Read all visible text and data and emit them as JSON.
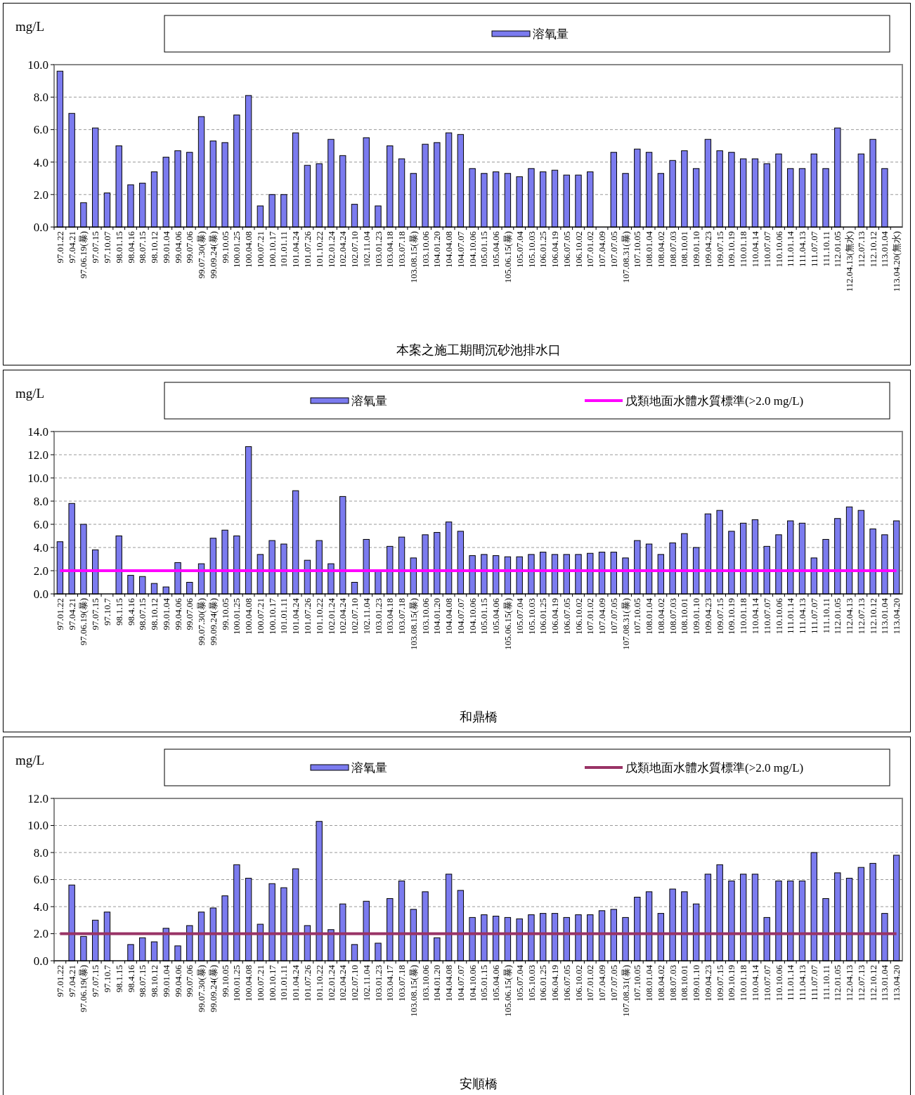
{
  "chart_data": [
    {
      "type": "bar",
      "ylabel": "mg/L",
      "xlabel": "本案之施工期間沉砂池排水口",
      "categories": [
        "97.01.22",
        "97.04.21",
        "97.06.19(暴)",
        "97.07.15",
        "97.10.07",
        "98.01.15",
        "98.04.16",
        "98.07.15",
        "98.10.12",
        "99.01.04",
        "99.04.06",
        "99.07.06",
        "99.07.30(暴)",
        "99.09.24(暴)",
        "99.10.05",
        "100.01.25",
        "100.04.08",
        "100.07.21",
        "100.10.17",
        "101.01.11",
        "101.04.24",
        "101.07.26",
        "101.10.22",
        "102.01.24",
        "102.04.24",
        "102.07.10",
        "102.11.04",
        "103.01.23",
        "103.04.18",
        "103.07.18",
        "103.08.15(暴)",
        "103.10.06",
        "104.01.20",
        "104.04.08",
        "104.07.07",
        "104.10.06",
        "105.01.15",
        "105.04.06",
        "105.06.15(暴)",
        "105.07.04",
        "105.10.03",
        "106.01.25",
        "106.04.19",
        "106.07.05",
        "106.10.02",
        "107.01.02",
        "107.04.09",
        "107.07.05",
        "107.08.31(暴)",
        "107.10.05",
        "108.01.04",
        "108.04.02",
        "108.07.03",
        "108.10.01",
        "109.01.10",
        "109.04.23",
        "109.07.15",
        "109.10.19",
        "110.01.18",
        "110.04.14",
        "110.07.07",
        "110.10.06",
        "111.01.14",
        "111.04.13",
        "111.07.07",
        "111.10.11",
        "112.01.05",
        "112.04.13(無水)",
        "112.07.13",
        "112.10.12",
        "113.01.04",
        "113.04.20(無水)"
      ],
      "series": [
        {
          "name": "溶氧量",
          "color": "#7b7bef",
          "values": [
            9.6,
            7.0,
            1.5,
            6.1,
            2.1,
            5.0,
            2.6,
            2.7,
            3.4,
            4.3,
            4.7,
            4.6,
            6.8,
            5.3,
            5.2,
            6.9,
            8.1,
            1.3,
            2.0,
            2.0,
            5.8,
            3.8,
            3.9,
            5.4,
            4.4,
            1.4,
            5.5,
            1.3,
            5.0,
            4.2,
            3.3,
            5.1,
            5.2,
            5.8,
            5.7,
            3.6,
            3.3,
            3.4,
            3.3,
            3.1,
            3.6,
            3.4,
            3.5,
            3.2,
            3.2,
            3.4,
            null,
            4.6,
            3.3,
            4.8,
            4.6,
            3.3,
            4.1,
            4.7,
            3.6,
            5.4,
            4.7,
            4.6,
            4.2,
            4.2,
            3.9,
            4.5,
            3.6,
            3.6,
            4.5,
            3.6,
            6.1,
            null,
            4.5,
            5.4,
            3.6,
            null
          ]
        }
      ],
      "ylim": [
        0,
        10
      ],
      "yticks": [
        {
          "value": 0,
          "label": "0.0"
        },
        {
          "value": 2,
          "label": "2.0"
        },
        {
          "value": 4,
          "label": "4.0"
        },
        {
          "value": 6,
          "label": "6.0"
        },
        {
          "value": 8,
          "label": "8.0"
        },
        {
          "value": 10,
          "label": "10.0"
        }
      ],
      "grid": "y",
      "legend": "top"
    },
    {
      "type": "bar",
      "ylabel": "mg/L",
      "xlabel": "和鼎橋",
      "categories": [
        "97.01.22",
        "97.04.21",
        "97.06.19(暴)",
        "97.07.15",
        "97.10.7",
        "98.1.15",
        "98.4.16",
        "98.07.15",
        "98.10.12",
        "99.01.04",
        "99.04.06",
        "99.07.06",
        "99.07.30(暴)",
        "99.09.24(暴)",
        "99.10.05",
        "100.01.25",
        "100.04.08",
        "100.07.21",
        "100.10.17",
        "101.01.11",
        "101.04.24",
        "101.07.26",
        "101.10.22",
        "102.01.24",
        "102.04.24",
        "102.07.10",
        "102.11.04",
        "103.01.23",
        "103.04.18",
        "103.07.18",
        "103.08.15(暴)",
        "103.10.06",
        "104.01.20",
        "104.04.08",
        "104.07.07",
        "104.10.06",
        "105.01.15",
        "105.04.06",
        "105.06.15(暴)",
        "105.07.04",
        "105.10.03",
        "106.01.25",
        "106.04.19",
        "106.07.05",
        "106.10.02",
        "107.01.02",
        "107.04.09",
        "107.07.05",
        "107.08.31(暴)",
        "107.10.05",
        "108.01.04",
        "108.04.02",
        "108.07.03",
        "108.10.01",
        "109.01.10",
        "109.04.23",
        "109.07.15",
        "109.10.19",
        "110.01.18",
        "110.04.14",
        "110.07.07",
        "110.10.06",
        "111.01.14",
        "111.04.13",
        "111.07.07",
        "111.10.11",
        "112.01.05",
        "112.04.13",
        "112.07.13",
        "112.10.12",
        "113.01.04",
        "113.04.20"
      ],
      "series": [
        {
          "name": "溶氧量",
          "color": "#7b7bef",
          "values": [
            4.5,
            7.8,
            6.0,
            3.8,
            null,
            5.0,
            1.6,
            1.5,
            0.9,
            0.6,
            2.7,
            1.0,
            2.6,
            4.8,
            5.5,
            5.0,
            12.7,
            3.4,
            4.6,
            4.3,
            8.9,
            2.9,
            4.6,
            2.6,
            8.4,
            1.0,
            4.7,
            2.0,
            4.1,
            4.9,
            3.1,
            5.1,
            5.3,
            6.2,
            5.4,
            3.3,
            3.4,
            3.3,
            3.2,
            3.2,
            3.4,
            3.6,
            3.4,
            3.4,
            3.4,
            3.5,
            3.6,
            3.6,
            3.1,
            4.6,
            4.3,
            3.4,
            4.4,
            5.2,
            4.0,
            6.9,
            7.2,
            5.4,
            6.1,
            6.4,
            4.1,
            5.1,
            6.3,
            6.1,
            3.1,
            4.7,
            6.5,
            7.5,
            7.2,
            5.6,
            5.1,
            6.3
          ]
        },
        {
          "name": "戊類地面水體水質標準(>2.0 mg/L)",
          "type": "line",
          "color": "#ff00ff",
          "values": [
            2,
            2,
            2,
            2,
            2,
            2,
            2,
            2,
            2,
            2,
            2,
            2,
            2,
            2,
            2,
            2,
            2,
            2,
            2,
            2,
            2,
            2,
            2,
            2,
            2,
            2,
            2,
            2,
            2,
            2,
            2,
            2,
            2,
            2,
            2,
            2,
            2,
            2,
            2,
            2,
            2,
            2,
            2,
            2,
            2,
            2,
            2,
            2,
            2,
            2,
            2,
            2,
            2,
            2,
            2,
            2,
            2,
            2,
            2,
            2,
            2,
            2,
            2,
            2,
            2,
            2,
            2,
            2,
            2,
            2,
            2,
            2
          ]
        }
      ],
      "ylim": [
        0,
        14
      ],
      "yticks": [
        {
          "value": 0,
          "label": "0.0"
        },
        {
          "value": 2,
          "label": "2.0"
        },
        {
          "value": 4,
          "label": "4.0"
        },
        {
          "value": 6,
          "label": "6.0"
        },
        {
          "value": 8,
          "label": "8.0"
        },
        {
          "value": 10,
          "label": "10.0"
        },
        {
          "value": 12,
          "label": "12.0"
        },
        {
          "value": 14,
          "label": "14.0"
        }
      ],
      "grid": "y",
      "legend": "top"
    },
    {
      "type": "bar",
      "ylabel": "mg/L",
      "xlabel": "安順橋",
      "categories": [
        "97.01.22",
        "97.04.21",
        "97.06.19(暴)",
        "97.07.15",
        "97.10.7",
        "98.1.15",
        "98.4.16",
        "98.07.15",
        "98.10.12",
        "99.01.04",
        "99.04.06",
        "99.07.06",
        "99.07.30(暴)",
        "99.09.24(暴)",
        "99.10.05",
        "100.01.25",
        "100.04.08",
        "100.07.21",
        "100.10.17",
        "101.01.11",
        "101.04.24",
        "101.07.26",
        "101.10.22",
        "102.01.24",
        "102.04.24",
        "102.07.10",
        "102.11.04",
        "103.01.23",
        "103.04.17",
        "103.07.18",
        "103.08.15(暴)",
        "103.10.06",
        "104.01.20",
        "104.04.08",
        "104.07.07",
        "104.10.06",
        "105.01.15",
        "105.04.06",
        "105.06.15(暴)",
        "105.07.04",
        "105.10.03",
        "106.01.25",
        "106.04.19",
        "106.07.05",
        "106.10.02",
        "107.01.02",
        "107.04.09",
        "107.07.05",
        "107.08.31(暴)",
        "107.10.05",
        "108.01.04",
        "108.04.02",
        "108.07.03",
        "108.10.01",
        "109.01.10",
        "109.04.23",
        "109.07.15",
        "109.10.19",
        "110.01.18",
        "110.04.14",
        "110.07.07",
        "110.10.06",
        "111.01.14",
        "111.04.13",
        "111.07.07",
        "111.10.11",
        "112.01.05",
        "112.04.13",
        "112.07.13",
        "112.10.12",
        "113.01.04",
        "113.04.20"
      ],
      "series": [
        {
          "name": "溶氧量",
          "color": "#7b7bef",
          "values": [
            null,
            5.6,
            1.8,
            3.0,
            3.6,
            null,
            1.2,
            1.7,
            1.4,
            2.4,
            1.1,
            2.6,
            3.6,
            3.9,
            4.8,
            7.1,
            6.1,
            2.7,
            5.7,
            5.4,
            6.8,
            2.6,
            10.3,
            2.3,
            4.2,
            1.2,
            4.4,
            1.3,
            4.6,
            5.9,
            3.8,
            5.1,
            1.7,
            6.4,
            5.2,
            3.2,
            3.4,
            3.3,
            3.2,
            3.1,
            3.4,
            3.5,
            3.5,
            3.2,
            3.4,
            3.4,
            3.7,
            3.8,
            3.2,
            4.7,
            5.1,
            3.5,
            5.3,
            5.1,
            4.2,
            6.4,
            7.1,
            5.9,
            6.4,
            6.4,
            3.2,
            5.9,
            5.9,
            5.9,
            8.0,
            4.6,
            6.5,
            6.1,
            6.9,
            7.2,
            3.5,
            7.8
          ]
        },
        {
          "name": "戊類地面水體水質標準(>2.0 mg/L)",
          "type": "line",
          "color": "#993366",
          "values": [
            2,
            2,
            2,
            2,
            2,
            2,
            2,
            2,
            2,
            2,
            2,
            2,
            2,
            2,
            2,
            2,
            2,
            2,
            2,
            2,
            2,
            2,
            2,
            2,
            2,
            2,
            2,
            2,
            2,
            2,
            2,
            2,
            2,
            2,
            2,
            2,
            2,
            2,
            2,
            2,
            2,
            2,
            2,
            2,
            2,
            2,
            2,
            2,
            2,
            2,
            2,
            2,
            2,
            2,
            2,
            2,
            2,
            2,
            2,
            2,
            2,
            2,
            2,
            2,
            2,
            2,
            2,
            2,
            2,
            2,
            2,
            2
          ]
        }
      ],
      "ylim": [
        0,
        12
      ],
      "yticks": [
        {
          "value": 0,
          "label": "0.0"
        },
        {
          "value": 2,
          "label": "2.0"
        },
        {
          "value": 4,
          "label": "4.0"
        },
        {
          "value": 6,
          "label": "6.0"
        },
        {
          "value": 8,
          "label": "8.0"
        },
        {
          "value": 10,
          "label": "10.0"
        },
        {
          "value": 12,
          "label": "12.0"
        }
      ],
      "grid": "y",
      "legend": "top"
    }
  ]
}
